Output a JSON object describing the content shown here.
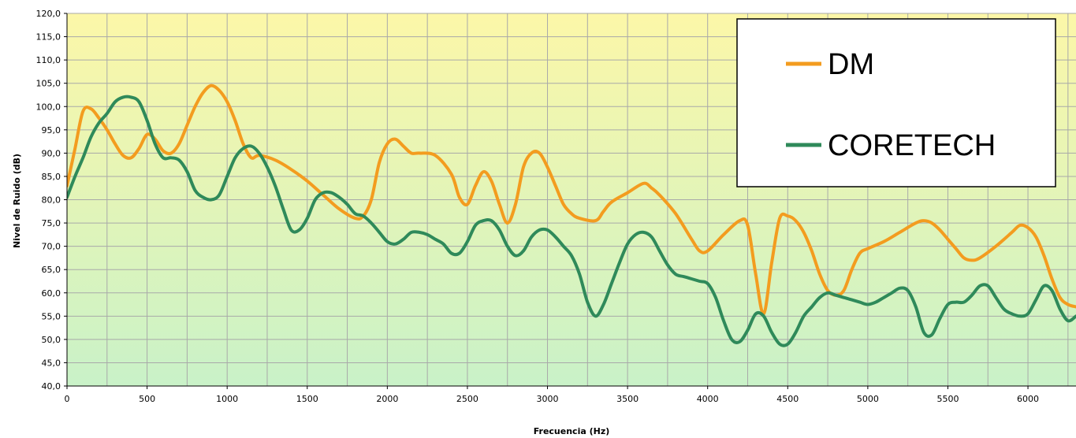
{
  "chart_data": {
    "type": "line",
    "title": "",
    "xlabel": "Frecuencia (Hz)",
    "ylabel": "Nivel de Ruido (dB)",
    "xlim": [
      0,
      6300
    ],
    "ylim": [
      40,
      120
    ],
    "x_ticks": [
      "0",
      "500",
      "1000",
      "1500",
      "2000",
      "2500",
      "3000",
      "3500",
      "4000",
      "4500",
      "5000",
      "5500",
      "6000"
    ],
    "y_ticks": [
      "40,0",
      "45,0",
      "50,0",
      "55,0",
      "60,0",
      "65,0",
      "70,0",
      "75,0",
      "80,0",
      "85,0",
      "90,0",
      "95,0",
      "100,0",
      "105,0",
      "110,0",
      "115,0",
      "120,0"
    ],
    "grid": true,
    "legend_position": "top-right",
    "background_gradient": [
      "#fcf7a8",
      "#c9f2c8"
    ],
    "series": [
      {
        "name": "DM",
        "color": "#f39c1f",
        "x": [
          0,
          50,
          100,
          150,
          200,
          250,
          300,
          350,
          400,
          450,
          500,
          550,
          600,
          650,
          700,
          750,
          800,
          850,
          900,
          950,
          1000,
          1050,
          1100,
          1150,
          1200,
          1300,
          1400,
          1500,
          1600,
          1700,
          1800,
          1850,
          1900,
          1950,
          2000,
          2050,
          2100,
          2150,
          2200,
          2300,
          2400,
          2450,
          2500,
          2550,
          2600,
          2650,
          2700,
          2750,
          2800,
          2850,
          2900,
          2950,
          3000,
          3050,
          3100,
          3150,
          3200,
          3300,
          3350,
          3400,
          3500,
          3600,
          3650,
          3700,
          3800,
          3900,
          3950,
          4000,
          4100,
          4200,
          4250,
          4300,
          4350,
          4400,
          4450,
          4500,
          4550,
          4600,
          4650,
          4700,
          4750,
          4800,
          4850,
          4900,
          4950,
          5000,
          5100,
          5200,
          5300,
          5350,
          5400,
          5450,
          5500,
          5550,
          5600,
          5650,
          5700,
          5800,
          5900,
          5950,
          6000,
          6050,
          6100,
          6150,
          6200,
          6250,
          6300
        ],
        "values": [
          83,
          91,
          99,
          99.5,
          97.5,
          95,
          92,
          89.5,
          89,
          91,
          94,
          93,
          90.5,
          90,
          92,
          96,
          100,
          103,
          104.5,
          103.5,
          101,
          97,
          92,
          89,
          89.5,
          88.5,
          86.5,
          84,
          81,
          78,
          76,
          76.5,
          80,
          88,
          92,
          93,
          91.5,
          90,
          90,
          89.5,
          85.5,
          80.5,
          79,
          83,
          86,
          84,
          79,
          75,
          79,
          87,
          90,
          90,
          87,
          83,
          79,
          77,
          76,
          75.5,
          77.5,
          79.5,
          81.5,
          83.5,
          82.5,
          81,
          77,
          71.5,
          69,
          69,
          72.5,
          75.5,
          74.5,
          64,
          55.5,
          66.5,
          76,
          76.5,
          75.5,
          73,
          69,
          64,
          60.5,
          59.5,
          60.5,
          65,
          68.5,
          69.5,
          71,
          73,
          75,
          75.5,
          75,
          73.5,
          71.5,
          69.5,
          67.5,
          67,
          67.5,
          70,
          73,
          74.5,
          74,
          72,
          68,
          63,
          59,
          57.5,
          57
        ]
      },
      {
        "name": "CORETECH",
        "color": "#2f8a5a",
        "x": [
          0,
          50,
          100,
          150,
          200,
          250,
          300,
          350,
          400,
          450,
          500,
          550,
          600,
          650,
          700,
          750,
          800,
          850,
          900,
          950,
          1000,
          1050,
          1100,
          1150,
          1200,
          1250,
          1300,
          1350,
          1400,
          1450,
          1500,
          1550,
          1600,
          1650,
          1700,
          1750,
          1800,
          1850,
          1900,
          1950,
          2000,
          2050,
          2100,
          2150,
          2200,
          2250,
          2300,
          2350,
          2400,
          2450,
          2500,
          2550,
          2600,
          2650,
          2700,
          2750,
          2800,
          2850,
          2900,
          2950,
          3000,
          3050,
          3100,
          3150,
          3200,
          3250,
          3300,
          3350,
          3400,
          3450,
          3500,
          3550,
          3600,
          3650,
          3700,
          3750,
          3800,
          3850,
          3900,
          3950,
          4000,
          4050,
          4100,
          4150,
          4200,
          4250,
          4300,
          4350,
          4400,
          4450,
          4500,
          4550,
          4600,
          4650,
          4700,
          4750,
          4800,
          4850,
          4900,
          4950,
          5000,
          5050,
          5100,
          5150,
          5200,
          5250,
          5300,
          5350,
          5400,
          5450,
          5500,
          5550,
          5600,
          5650,
          5700,
          5750,
          5800,
          5850,
          5900,
          5950,
          6000,
          6050,
          6100,
          6150,
          6200,
          6250,
          6300
        ],
        "values": [
          80.5,
          85,
          89,
          93.5,
          96.5,
          98.5,
          101,
          102,
          102,
          101,
          97,
          92,
          89,
          89,
          88.5,
          86,
          82,
          80.5,
          80,
          81,
          85,
          89,
          91,
          91.5,
          90,
          87,
          83,
          78,
          73.5,
          73.5,
          76,
          80,
          81.5,
          81.5,
          80.5,
          79,
          77,
          76.5,
          75,
          73,
          71,
          70.5,
          71.5,
          73,
          73,
          72.5,
          71.5,
          70.5,
          68.5,
          68.5,
          71,
          74.5,
          75.5,
          75.5,
          73.5,
          70,
          68,
          69,
          72,
          73.5,
          73.5,
          72,
          70,
          68,
          64,
          58,
          55,
          57.5,
          62,
          66.5,
          70.5,
          72.5,
          73,
          72,
          69,
          66,
          64,
          63.5,
          63,
          62.5,
          62,
          59,
          54,
          50,
          49.5,
          52,
          55.5,
          55,
          51.5,
          49,
          49,
          51.5,
          55,
          57,
          59,
          60,
          59.5,
          59,
          58.5,
          58,
          57.5,
          58,
          59,
          60,
          61,
          60.5,
          57,
          51.5,
          51,
          54.5,
          57.5,
          58,
          58,
          59.5,
          61.5,
          61.5,
          59,
          56.5,
          55.5,
          55,
          55.5,
          58.5,
          61.5,
          60.5,
          56.5,
          54,
          55
        ]
      }
    ]
  }
}
